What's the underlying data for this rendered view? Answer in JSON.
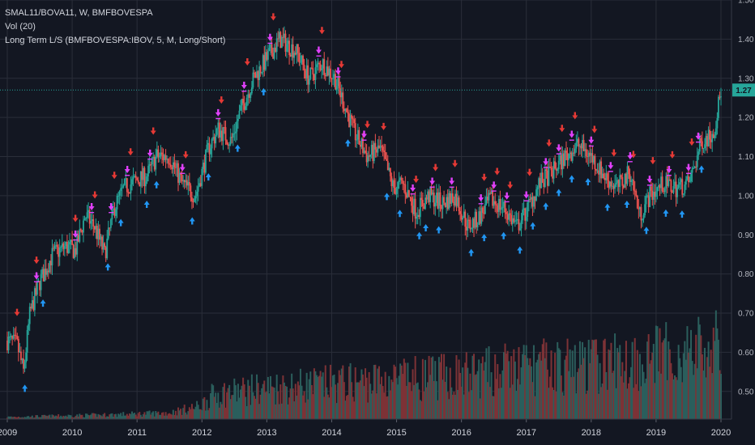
{
  "legend": {
    "symbol_line": "SMAL11/BOVA11, W, BMFBOVESPA",
    "volume_line": "Vol (20)",
    "indicator_line": "Long Term L/S (BMFBOVESPA:IBOV, 5, M, Long/Short)"
  },
  "colors": {
    "background": "#131722",
    "grid": "#2a2e39",
    "up": "#26a69a",
    "down": "#ef5350",
    "vol_up": "#2b5e5c",
    "vol_down": "#7d3236",
    "signal_red": "#e53935",
    "signal_blue": "#2196f3",
    "signal_purple": "#e040fb",
    "current_line": "#26a69a"
  },
  "chart_data": {
    "type": "candlestick",
    "symbol": "SMAL11/BOVA11",
    "timeframe": "W",
    "exchange": "BMFBOVESPA",
    "x_ticks": [
      "2009",
      "2010",
      "2011",
      "2012",
      "2013",
      "2014",
      "2015",
      "2016",
      "2017",
      "2018",
      "2019",
      "2020"
    ],
    "x_range": [
      2008.95,
      2020.1
    ],
    "y_ticks": [
      "0.50",
      "0.60",
      "0.70",
      "0.80",
      "0.90",
      "1.00",
      "1.10",
      "1.20",
      "1.30",
      "1.40",
      "1.50"
    ],
    "y_range": [
      0.45,
      1.5
    ],
    "grid": true,
    "current_value": "1.27",
    "price_path": [
      [
        2009.0,
        0.63
      ],
      [
        2009.15,
        0.62
      ],
      [
        2009.25,
        0.55
      ],
      [
        2009.35,
        0.7
      ],
      [
        2009.5,
        0.78
      ],
      [
        2009.7,
        0.85
      ],
      [
        2009.9,
        0.87
      ],
      [
        2010.05,
        0.86
      ],
      [
        2010.2,
        0.95
      ],
      [
        2010.35,
        0.92
      ],
      [
        2010.5,
        0.85
      ],
      [
        2010.65,
        0.97
      ],
      [
        2010.8,
        1.02
      ],
      [
        2011.0,
        1.04
      ],
      [
        2011.15,
        1.05
      ],
      [
        2011.3,
        1.1
      ],
      [
        2011.5,
        1.1
      ],
      [
        2011.7,
        1.03
      ],
      [
        2011.9,
        1.0
      ],
      [
        2012.1,
        1.12
      ],
      [
        2012.25,
        1.17
      ],
      [
        2012.45,
        1.14
      ],
      [
        2012.6,
        1.22
      ],
      [
        2012.8,
        1.3
      ],
      [
        2013.0,
        1.35
      ],
      [
        2013.2,
        1.4
      ],
      [
        2013.45,
        1.37
      ],
      [
        2013.65,
        1.3
      ],
      [
        2013.85,
        1.34
      ],
      [
        2014.05,
        1.3
      ],
      [
        2014.2,
        1.23
      ],
      [
        2014.35,
        1.16
      ],
      [
        2014.55,
        1.1
      ],
      [
        2014.75,
        1.12
      ],
      [
        2014.95,
        1.02
      ],
      [
        2015.1,
        1.03
      ],
      [
        2015.3,
        0.96
      ],
      [
        2015.5,
        1.0
      ],
      [
        2015.7,
        0.98
      ],
      [
        2015.9,
        1.0
      ],
      [
        2016.1,
        0.92
      ],
      [
        2016.25,
        0.94
      ],
      [
        2016.45,
        0.99
      ],
      [
        2016.65,
        0.97
      ],
      [
        2016.85,
        0.92
      ],
      [
        2017.0,
        0.96
      ],
      [
        2017.2,
        1.03
      ],
      [
        2017.4,
        1.06
      ],
      [
        2017.6,
        1.1
      ],
      [
        2017.8,
        1.13
      ],
      [
        2018.0,
        1.1
      ],
      [
        2018.2,
        1.05
      ],
      [
        2018.4,
        1.02
      ],
      [
        2018.6,
        1.06
      ],
      [
        2018.75,
        0.95
      ],
      [
        2018.9,
        1.0
      ],
      [
        2019.1,
        1.03
      ],
      [
        2019.3,
        1.02
      ],
      [
        2019.5,
        1.03
      ],
      [
        2019.6,
        1.08
      ],
      [
        2019.7,
        1.14
      ],
      [
        2019.8,
        1.15
      ],
      [
        2019.9,
        1.17
      ],
      [
        2020.0,
        1.27
      ]
    ],
    "volume_path": [
      [
        2009.0,
        0.01
      ],
      [
        2010.5,
        0.02
      ],
      [
        2011.5,
        0.03
      ],
      [
        2011.95,
        0.06
      ],
      [
        2012.2,
        0.12
      ],
      [
        2013.0,
        0.15
      ],
      [
        2014.0,
        0.17
      ],
      [
        2015.0,
        0.19
      ],
      [
        2016.0,
        0.21
      ],
      [
        2017.0,
        0.25
      ],
      [
        2018.0,
        0.26
      ],
      [
        2019.0,
        0.3
      ],
      [
        2020.0,
        0.34
      ]
    ],
    "signals": {
      "long_entry_blue_up": [
        2009.27,
        2009.55,
        2010.55,
        2010.75,
        2011.15,
        2011.3,
        2011.85,
        2012.1,
        2012.55,
        2012.95,
        2014.25,
        2014.85,
        2015.05,
        2015.35,
        2015.45,
        2015.65,
        2016.15,
        2016.35,
        2016.65,
        2016.9,
        2017.1,
        2017.3,
        2017.5,
        2017.7,
        2017.95,
        2018.25,
        2018.55,
        2018.85,
        2019.15,
        2019.4,
        2019.7
      ],
      "short_entry_red_down": [
        2009.15,
        2009.45,
        2010.05,
        2010.35,
        2010.65,
        2010.9,
        2011.25,
        2011.75,
        2012.3,
        2012.7,
        2013.1,
        2013.85,
        2014.15,
        2014.55,
        2014.8,
        2015.3,
        2015.6,
        2015.9,
        2016.35,
        2016.55,
        2016.75,
        2017.05,
        2017.35,
        2017.55,
        2017.75,
        2018.05,
        2018.35,
        2018.65,
        2018.95,
        2019.25,
        2019.55
      ],
      "exit_purple": [
        2009.45,
        2010.05,
        2010.3,
        2010.6,
        2010.85,
        2011.2,
        2011.7,
        2012.25,
        2012.65,
        2013.05,
        2013.8,
        2014.1,
        2014.5,
        2015.25,
        2015.55,
        2015.85,
        2016.3,
        2016.5,
        2016.7,
        2017.0,
        2017.3,
        2017.5,
        2017.7,
        2018.0,
        2018.3,
        2018.6,
        2018.9,
        2019.2,
        2019.5,
        2019.65
      ]
    }
  }
}
